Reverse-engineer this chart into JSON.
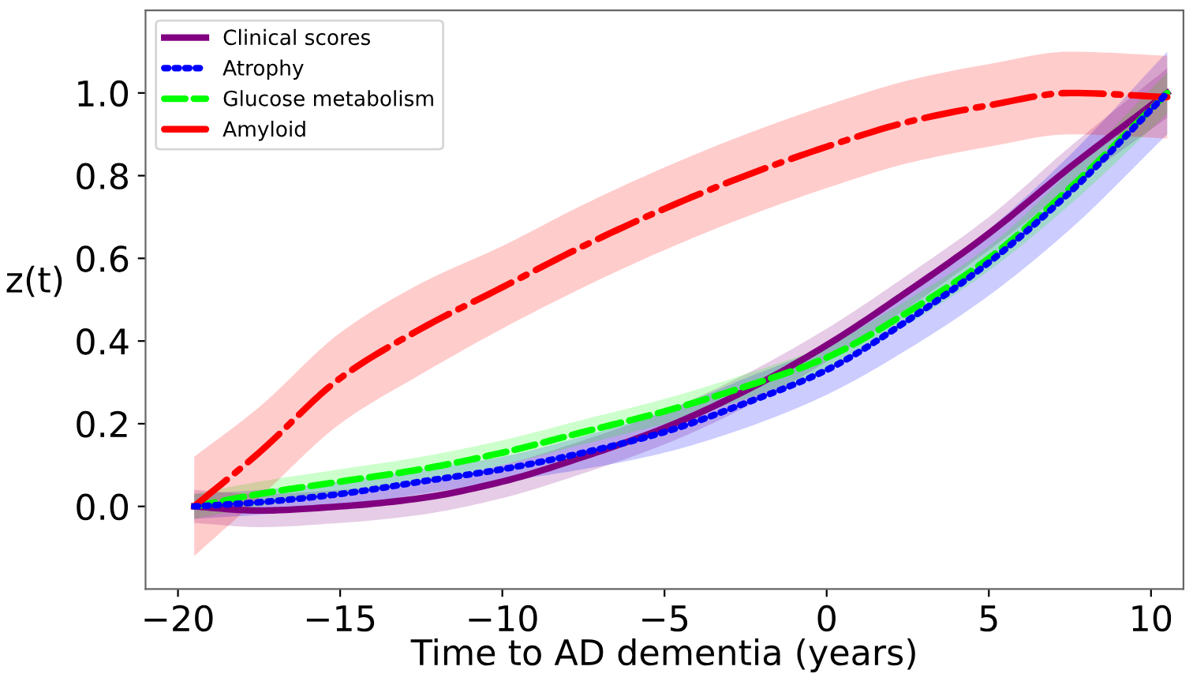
{
  "chart_data": {
    "type": "line",
    "xlabel": "Time to AD dementia (years)",
    "ylabel": "z(t)",
    "xlim": [
      -21,
      11
    ],
    "ylim": [
      -0.2,
      1.2
    ],
    "xticks": [
      {
        "value": -20,
        "label": "−20"
      },
      {
        "value": -15,
        "label": "−15"
      },
      {
        "value": -10,
        "label": "−10"
      },
      {
        "value": -5,
        "label": "−5"
      },
      0,
      5,
      10
    ],
    "yticks": [
      {
        "value": 0,
        "label": "0.0"
      },
      {
        "value": 0.2,
        "label": "0.2"
      },
      {
        "value": 0.4,
        "label": "0.4"
      },
      {
        "value": 0.6,
        "label": "0.6"
      },
      {
        "value": 0.8,
        "label": "0.8"
      },
      {
        "value": 1,
        "label": "1.0"
      }
    ],
    "grid": false,
    "legend": "top left",
    "marker": "none",
    "x": [
      -19.5,
      -17.5,
      -15,
      -12.5,
      -10,
      -7.5,
      -5,
      -2.5,
      0,
      2.5,
      5,
      7.5,
      10.5
    ],
    "series": [
      {
        "name": "Clinical scores",
        "color": "#800080",
        "line_style": "solid",
        "values": [
          0,
          -0.01,
          0,
          0.02,
          0.06,
          0.12,
          0.19,
          0.28,
          0.39,
          0.52,
          0.66,
          0.82,
          1.0
        ],
        "lower": [
          -0.04,
          -0.05,
          -0.04,
          -0.02,
          0.02,
          0.08,
          0.15,
          0.24,
          0.35,
          0.48,
          0.62,
          0.77,
          0.94
        ],
        "upper": [
          0.04,
          0.03,
          0.04,
          0.06,
          0.1,
          0.16,
          0.23,
          0.32,
          0.43,
          0.56,
          0.7,
          0.87,
          1.06
        ]
      },
      {
        "name": "Atrophy",
        "color": "#0000ff",
        "line_style": "dotted",
        "values": [
          0,
          0.01,
          0.03,
          0.06,
          0.09,
          0.13,
          0.18,
          0.25,
          0.33,
          0.45,
          0.59,
          0.76,
          1.0
        ],
        "lower": [
          -0.03,
          -0.02,
          0,
          0.03,
          0.06,
          0.09,
          0.13,
          0.19,
          0.27,
          0.38,
          0.51,
          0.67,
          0.9
        ],
        "upper": [
          0.03,
          0.04,
          0.06,
          0.09,
          0.12,
          0.17,
          0.23,
          0.31,
          0.39,
          0.52,
          0.67,
          0.85,
          1.1
        ]
      },
      {
        "name": "Glucose metabolism",
        "color": "#00ff00",
        "line_style": "dashed",
        "values": [
          0,
          0.03,
          0.06,
          0.09,
          0.13,
          0.18,
          0.23,
          0.29,
          0.36,
          0.47,
          0.6,
          0.77,
          1.0
        ],
        "lower": [
          -0.03,
          0,
          0.03,
          0.06,
          0.1,
          0.15,
          0.2,
          0.26,
          0.33,
          0.44,
          0.57,
          0.73,
          0.95
        ],
        "upper": [
          0.03,
          0.06,
          0.09,
          0.12,
          0.16,
          0.21,
          0.26,
          0.32,
          0.39,
          0.5,
          0.63,
          0.81,
          1.05
        ]
      },
      {
        "name": "Amyloid",
        "color": "#ff0000",
        "line_style": "dashdot",
        "values": [
          0,
          0.13,
          0.31,
          0.43,
          0.53,
          0.63,
          0.72,
          0.8,
          0.87,
          0.93,
          0.97,
          1.0,
          0.99
        ],
        "lower": [
          -0.12,
          0.02,
          0.2,
          0.32,
          0.43,
          0.53,
          0.62,
          0.7,
          0.77,
          0.83,
          0.87,
          0.9,
          0.89
        ],
        "upper": [
          0.12,
          0.24,
          0.42,
          0.54,
          0.63,
          0.73,
          0.82,
          0.9,
          0.97,
          1.03,
          1.07,
          1.1,
          1.09
        ]
      }
    ]
  }
}
